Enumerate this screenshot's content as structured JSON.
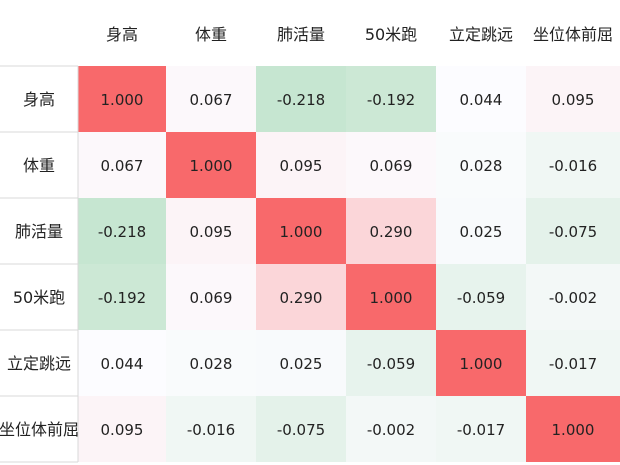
{
  "chart_data": {
    "type": "heatmap",
    "columns": [
      "身高",
      "体重",
      "肺活量",
      "50米跑",
      "立定跳远",
      "坐位体前屈"
    ],
    "rows": [
      "身高",
      "体重",
      "肺活量",
      "50米跑",
      "立定跳远",
      "坐位体前屈"
    ],
    "cell_labels": [
      [
        "1.000",
        "0.067",
        "-0.218",
        "-0.192",
        "0.044",
        "0.095"
      ],
      [
        "0.067",
        "1.000",
        "0.095",
        "0.069",
        "0.028",
        "-0.016"
      ],
      [
        "-0.218",
        "0.095",
        "1.000",
        "0.290",
        "0.025",
        "-0.075"
      ],
      [
        "-0.192",
        "0.069",
        "0.290",
        "1.000",
        "-0.059",
        "-0.002"
      ],
      [
        "0.044",
        "0.028",
        "0.025",
        "-0.059",
        "1.000",
        "-0.017"
      ],
      [
        "0.095",
        "-0.016",
        "-0.075",
        "-0.002",
        "-0.017",
        "1.000"
      ]
    ],
    "values": [
      [
        1.0,
        0.067,
        -0.218,
        -0.192,
        0.044,
        0.095
      ],
      [
        0.067,
        1.0,
        0.095,
        0.069,
        0.028,
        -0.016
      ],
      [
        -0.218,
        0.095,
        1.0,
        0.29,
        0.025,
        -0.075
      ],
      [
        -0.192,
        0.069,
        0.29,
        1.0,
        -0.059,
        -0.002
      ],
      [
        0.044,
        0.028,
        0.025,
        -0.059,
        1.0,
        -0.017
      ],
      [
        0.095,
        -0.016,
        -0.075,
        -0.002,
        -0.017,
        1.0
      ]
    ],
    "colors": {
      "high": "#f8696b",
      "mid": "#fcfcff",
      "low": "#63be7b"
    }
  }
}
